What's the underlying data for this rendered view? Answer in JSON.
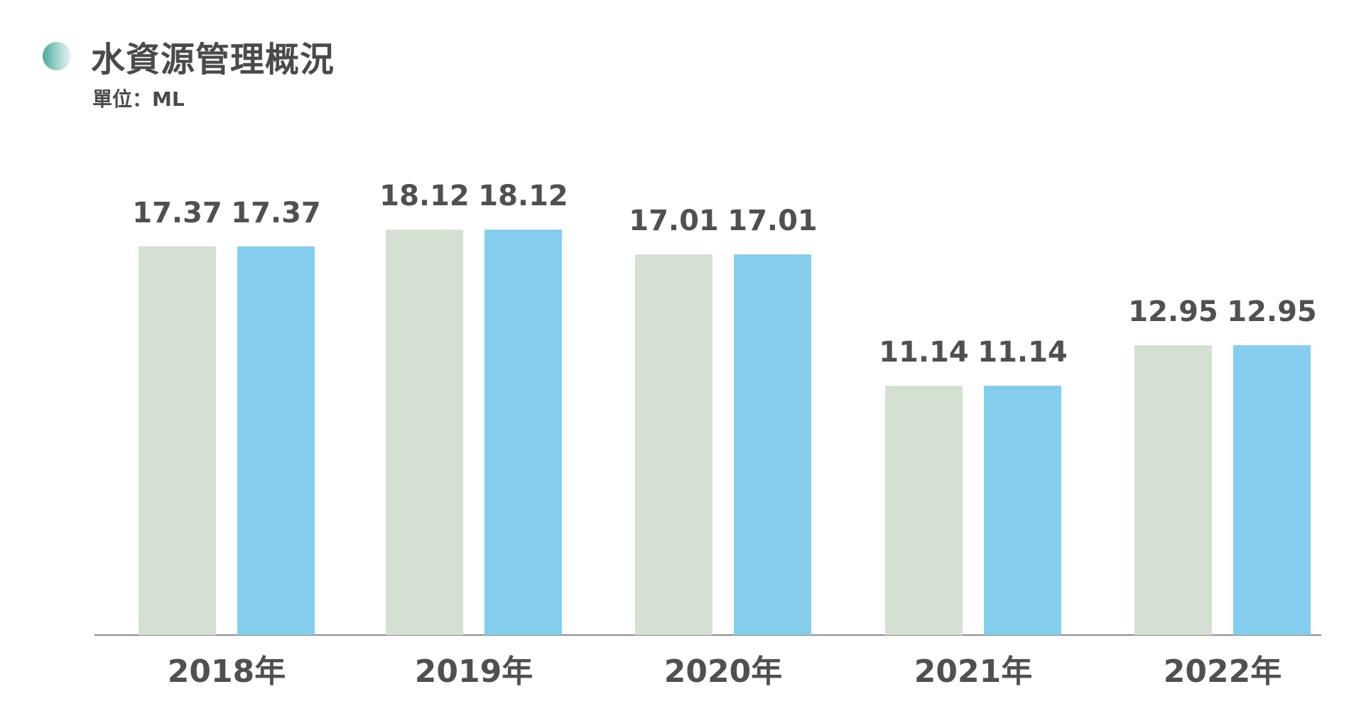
{
  "header": {
    "title": "水資源管理概況",
    "unit": "單位：ML"
  },
  "colors": {
    "series_1": "#d4e0d1",
    "series_2": "#84cdec",
    "axis": "#666666",
    "title_dot_start": "#4aa99a",
    "title_dot_end": "#e9f5f3"
  },
  "chart_data": {
    "type": "bar",
    "title": "水資源管理概況",
    "unit": "單位：ML",
    "categories": [
      "2018年",
      "2019年",
      "2020年",
      "2021年",
      "2022年"
    ],
    "series": [
      {
        "color": "#d4e0d1",
        "values": [
          17.37,
          18.12,
          17.01,
          11.14,
          12.95
        ]
      },
      {
        "color": "#84cdec",
        "values": [
          17.37,
          18.12,
          17.01,
          11.14,
          12.95
        ]
      }
    ],
    "ylim": [
      0,
      20
    ],
    "grid": false,
    "legend": "none"
  }
}
